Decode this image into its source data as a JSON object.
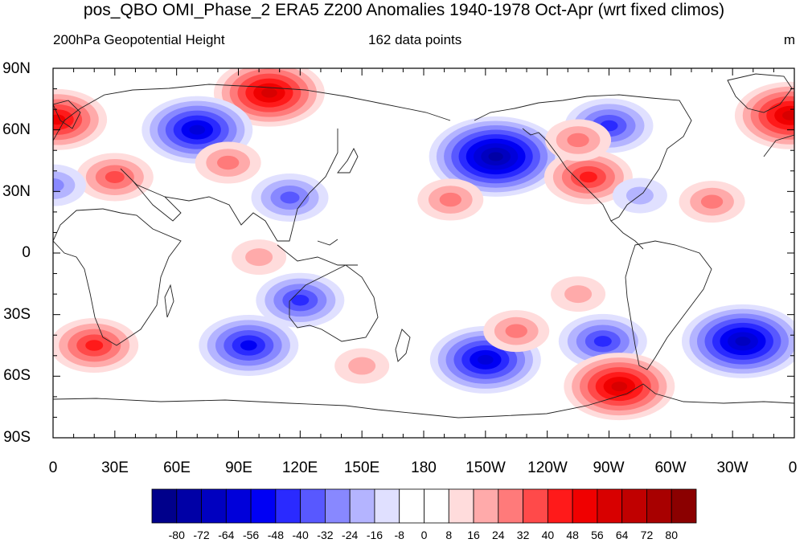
{
  "title": "pos_QBO OMI_Phase_2 ERA5 Z200 Anomalies 1940-1978 Oct-Apr (wrt fixed climos)",
  "left_label": "200hPa Geopotential Height",
  "center_label": "162 data points",
  "units_label": "m",
  "lat_labels": [
    "90N",
    "60N",
    "30N",
    "0",
    "30S",
    "60S",
    "90S"
  ],
  "lon_labels": [
    "0",
    "30E",
    "60E",
    "90E",
    "120E",
    "150E",
    "180",
    "150W",
    "120W",
    "90W",
    "60W",
    "30W",
    "0"
  ],
  "colorbar": {
    "labels": [
      "-80",
      "-72",
      "-64",
      "-56",
      "-48",
      "-40",
      "-32",
      "-24",
      "-16",
      "-8",
      "0",
      "8",
      "16",
      "24",
      "32",
      "40",
      "48",
      "56",
      "64",
      "72",
      "80"
    ],
    "colors": [
      "#00008b",
      "#0000a6",
      "#0000c0",
      "#0000da",
      "#0000f4",
      "#2a2aff",
      "#5858ff",
      "#8888ff",
      "#b4b4ff",
      "#e0e0ff",
      "#ffffff",
      "#ffffff",
      "#ffdcdc",
      "#ffaaaa",
      "#ff7a7a",
      "#ff4a4a",
      "#ff1a1a",
      "#f00000",
      "#d80000",
      "#c00000",
      "#a80000",
      "#8b0000"
    ]
  },
  "anomalies": [
    {
      "lon": 105,
      "lat": 78,
      "value": 58
    },
    {
      "lon": 2,
      "lat": 65,
      "value": 52
    },
    {
      "lon": 358,
      "lat": 67,
      "value": 56
    },
    {
      "lon": 70,
      "lat": 60,
      "value": -58
    },
    {
      "lon": 215,
      "lat": 47,
      "value": -74
    },
    {
      "lon": 270,
      "lat": 62,
      "value": -44
    },
    {
      "lon": 260,
      "lat": 37,
      "value": 44
    },
    {
      "lon": 30,
      "lat": 37,
      "value": 34
    },
    {
      "lon": 85,
      "lat": 44,
      "value": 28
    },
    {
      "lon": 193,
      "lat": 26,
      "value": 26
    },
    {
      "lon": 255,
      "lat": 55,
      "value": 26
    },
    {
      "lon": 115,
      "lat": 27,
      "value": -36
    },
    {
      "lon": 0,
      "lat": 33,
      "value": -30
    },
    {
      "lon": 285,
      "lat": 28,
      "value": -20
    },
    {
      "lon": 320,
      "lat": 25,
      "value": 30
    },
    {
      "lon": 120,
      "lat": -23,
      "value": -40
    },
    {
      "lon": 95,
      "lat": -45,
      "value": -52
    },
    {
      "lon": 210,
      "lat": -52,
      "value": -62
    },
    {
      "lon": 267,
      "lat": -43,
      "value": -44
    },
    {
      "lon": 335,
      "lat": -43,
      "value": -70
    },
    {
      "lon": 20,
      "lat": -45,
      "value": 40
    },
    {
      "lon": 275,
      "lat": -65,
      "value": 56
    },
    {
      "lon": 255,
      "lat": -20,
      "value": 22
    },
    {
      "lon": 225,
      "lat": -38,
      "value": 26
    },
    {
      "lon": 100,
      "lat": -2,
      "value": 16
    },
    {
      "lon": 150,
      "lat": -55,
      "value": 20
    }
  ]
}
